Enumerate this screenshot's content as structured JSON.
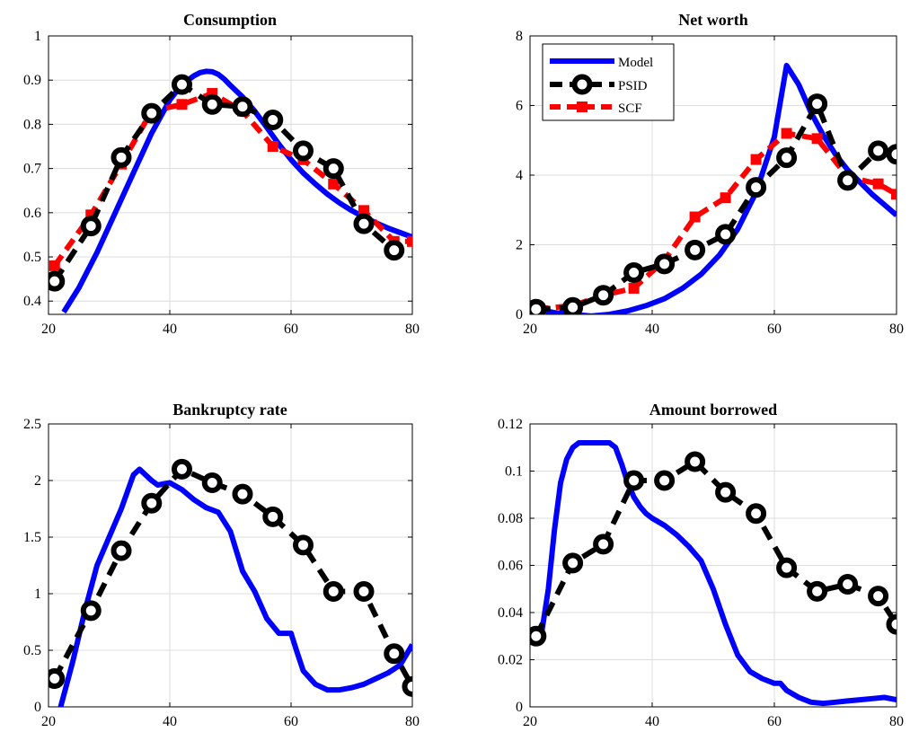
{
  "chart_data": [
    {
      "type": "line",
      "title": "Consumption",
      "xlabel": "",
      "ylabel": "",
      "xlim": [
        20,
        80
      ],
      "ylim": [
        0.37,
        1
      ],
      "xticks": [
        20,
        40,
        60,
        80
      ],
      "yticks": [
        0.4,
        0.5,
        0.6,
        0.7,
        0.8,
        0.9,
        1
      ],
      "ytick_labels": [
        "0.4",
        "0.5",
        "0.6",
        "0.7",
        "0.8",
        "0.9",
        "1"
      ],
      "grid": true,
      "series": [
        {
          "name": "Model",
          "style": "solid",
          "color": "#0000ff",
          "x": [
            22.5,
            25,
            28,
            31,
            34,
            37,
            40,
            42,
            44,
            45,
            46,
            47,
            48,
            49,
            50,
            52,
            54,
            56,
            58,
            60,
            62,
            64,
            66,
            68,
            70,
            72,
            74,
            76,
            78,
            80
          ],
          "y": [
            0.375,
            0.43,
            0.51,
            0.6,
            0.69,
            0.78,
            0.855,
            0.89,
            0.91,
            0.917,
            0.92,
            0.919,
            0.913,
            0.902,
            0.888,
            0.862,
            0.83,
            0.793,
            0.755,
            0.72,
            0.69,
            0.665,
            0.642,
            0.622,
            0.605,
            0.59,
            0.577,
            0.565,
            0.555,
            0.545
          ]
        },
        {
          "name": "SCF",
          "style": "dash",
          "color": "#ff0000",
          "x": [
            21,
            27,
            32,
            37,
            42,
            47,
            52,
            57,
            62,
            67,
            72,
            77,
            80
          ],
          "y": [
            0.48,
            0.595,
            0.71,
            0.83,
            0.845,
            0.87,
            0.83,
            0.75,
            0.72,
            0.665,
            0.605,
            0.535,
            0.535
          ]
        },
        {
          "name": "PSID",
          "style": "dash-marker",
          "color": "#000000",
          "x": [
            21,
            27,
            32,
            37,
            42,
            47,
            52,
            57,
            62,
            67,
            72,
            77
          ],
          "y": [
            0.445,
            0.57,
            0.725,
            0.825,
            0.89,
            0.845,
            0.84,
            0.81,
            0.74,
            0.7,
            0.575,
            0.515
          ]
        }
      ]
    },
    {
      "type": "line",
      "title": "Net worth",
      "xlabel": "",
      "ylabel": "",
      "xlim": [
        20,
        80
      ],
      "ylim": [
        0,
        8
      ],
      "xticks": [
        20,
        40,
        60,
        80
      ],
      "yticks": [
        0,
        2,
        4,
        6,
        8
      ],
      "ytick_labels": [
        "0",
        "2",
        "4",
        "6",
        "8"
      ],
      "grid": true,
      "legend": {
        "placement": "top-left",
        "entries": [
          "Model",
          "PSID",
          "SCF"
        ]
      },
      "series": [
        {
          "name": "Model",
          "style": "solid",
          "color": "#0000ff",
          "x": [
            21,
            24,
            27,
            30,
            33,
            36,
            39,
            42,
            45,
            48,
            51,
            54,
            57,
            60,
            62,
            64,
            66,
            68,
            70,
            72,
            74,
            76,
            78,
            80
          ],
          "y": [
            0.15,
            0.05,
            0,
            -0.05,
            0,
            0.1,
            0.25,
            0.45,
            0.75,
            1.15,
            1.7,
            2.45,
            3.5,
            5.1,
            7.15,
            6.6,
            5.8,
            5.15,
            4.6,
            4.15,
            3.8,
            3.45,
            3.15,
            2.85
          ]
        },
        {
          "name": "SCF",
          "style": "dash",
          "color": "#ff0000",
          "x": [
            21,
            27,
            32,
            37,
            42,
            47,
            52,
            57,
            62,
            67,
            72,
            77,
            80
          ],
          "y": [
            0.15,
            0.25,
            0.55,
            0.75,
            1.55,
            2.8,
            3.35,
            4.45,
            5.2,
            5.05,
            3.95,
            3.75,
            3.45
          ]
        },
        {
          "name": "PSID",
          "style": "dash-marker",
          "color": "#000000",
          "x": [
            21,
            27,
            32,
            37,
            42,
            47,
            52,
            57,
            62,
            67,
            72,
            77,
            80
          ],
          "y": [
            0.15,
            0.2,
            0.55,
            1.2,
            1.45,
            1.85,
            2.3,
            3.65,
            4.5,
            6.05,
            3.85,
            4.7,
            4.6
          ]
        }
      ]
    },
    {
      "type": "line",
      "title": "Bankruptcy rate",
      "xlabel": "",
      "ylabel": "",
      "xlim": [
        20,
        80
      ],
      "ylim": [
        0,
        2.5
      ],
      "xticks": [
        20,
        40,
        60,
        80
      ],
      "yticks": [
        0,
        0.5,
        1,
        1.5,
        2,
        2.5
      ],
      "ytick_labels": [
        "0",
        "0.5",
        "1",
        "1.5",
        "2",
        "2.5"
      ],
      "grid": true,
      "series": [
        {
          "name": "Model",
          "style": "solid",
          "color": "#0000ff",
          "x": [
            22,
            24,
            26,
            28,
            30,
            32,
            34,
            35,
            36,
            37,
            38,
            40,
            42,
            44,
            46,
            48,
            50,
            52,
            54,
            56,
            58,
            60,
            61,
            62,
            64,
            66,
            68,
            70,
            72,
            74,
            76,
            78,
            80
          ],
          "y": [
            0,
            0.4,
            0.85,
            1.25,
            1.5,
            1.75,
            2.05,
            2.1,
            2.05,
            2.0,
            1.96,
            1.98,
            1.92,
            1.83,
            1.76,
            1.72,
            1.55,
            1.2,
            1.02,
            0.78,
            0.65,
            0.65,
            0.48,
            0.32,
            0.2,
            0.15,
            0.15,
            0.17,
            0.2,
            0.25,
            0.3,
            0.37,
            0.55
          ]
        },
        {
          "name": "PSID",
          "style": "dash-marker",
          "color": "#000000",
          "x": [
            21,
            27,
            32,
            37,
            42,
            47,
            52,
            57,
            62,
            67,
            72,
            77,
            80
          ],
          "y": [
            0.25,
            0.85,
            1.38,
            1.8,
            2.1,
            1.98,
            1.88,
            1.68,
            1.43,
            1.02,
            1.02,
            0.47,
            0.18
          ]
        }
      ]
    },
    {
      "type": "line",
      "title": "Amount borrowed",
      "xlabel": "",
      "ylabel": "",
      "xlim": [
        20,
        80
      ],
      "ylim": [
        0,
        0.12
      ],
      "xticks": [
        20,
        40,
        60,
        80
      ],
      "yticks": [
        0,
        0.02,
        0.04,
        0.06,
        0.08,
        0.1,
        0.12
      ],
      "ytick_labels": [
        "0",
        "0.02",
        "0.04",
        "0.06",
        "0.08",
        "0.1",
        "0.12"
      ],
      "grid": true,
      "series": [
        {
          "name": "Model",
          "style": "solid",
          "color": "#0000ff",
          "x": [
            21,
            22,
            23,
            24,
            25,
            26,
            27,
            28,
            29,
            30,
            32,
            33,
            34,
            35,
            36,
            37,
            38,
            39,
            40,
            42,
            44,
            46,
            48,
            50,
            52,
            54,
            56,
            58,
            60,
            61,
            62,
            64,
            66,
            68,
            70,
            72,
            74,
            76,
            78,
            80
          ],
          "y": [
            0.028,
            0.033,
            0.05,
            0.075,
            0.095,
            0.105,
            0.11,
            0.112,
            0.112,
            0.112,
            0.112,
            0.112,
            0.11,
            0.103,
            0.095,
            0.089,
            0.085,
            0.082,
            0.08,
            0.077,
            0.073,
            0.068,
            0.062,
            0.05,
            0.035,
            0.022,
            0.015,
            0.012,
            0.01,
            0.01,
            0.007,
            0.004,
            0.002,
            0.0015,
            0.002,
            0.0025,
            0.003,
            0.0035,
            0.004,
            0.003
          ]
        },
        {
          "name": "PSID",
          "style": "dash-marker",
          "color": "#000000",
          "x": [
            21,
            27,
            32,
            37,
            42,
            47,
            52,
            57,
            62,
            67,
            72,
            77,
            80
          ],
          "y": [
            0.03,
            0.061,
            0.069,
            0.096,
            0.096,
            0.104,
            0.091,
            0.082,
            0.059,
            0.049,
            0.052,
            0.047,
            0.035
          ]
        }
      ]
    }
  ],
  "legend_labels": {
    "model": "Model",
    "psid": "PSID",
    "scf": "SCF"
  },
  "colors": {
    "model": "#0000ff",
    "psid": "#000000",
    "scf": "#ff0000",
    "grid": "#dcdcdc"
  }
}
